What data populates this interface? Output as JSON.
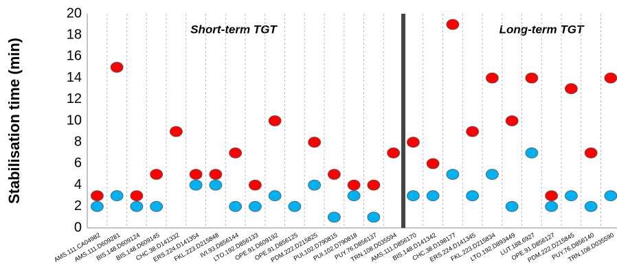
{
  "chart_data": {
    "type": "scatter",
    "y_label": "Stabilisation time (min)",
    "annotations": [
      "Short-term TGT",
      "Long-term TGT"
    ],
    "categories": [
      "AMS.111.CA04982",
      "AMS.111.D609281",
      "BIS.148.D609124",
      "BIS.148.D609145",
      "CHC.38.D141332",
      "ERS.224.D141354",
      "FKL.223.D215848",
      "IVI.93.D856144",
      "LTO.192.D856133",
      "OPE.91.D609192",
      "OPE.91.D856125",
      "PDM.222.D215825",
      "PUI.102.D790815",
      "PUI.102.D790818",
      "PUY.76.D856137",
      "TRN.108.D035594",
      "AMS.111.D856170",
      "BIS.148.D141342",
      "CHC.38.D198177",
      "ERS.224.D141345",
      "FKL.223.D215834",
      "LTO.192.D893449",
      "LUT.188.6927",
      "OPE.91.D856127",
      "PDM.222.D215845",
      "PUY.76.D856140",
      "TRN.108.D035590"
    ],
    "series": [
      {
        "color": "#ff0000",
        "values": [
          3,
          15,
          3,
          5,
          9,
          5,
          5,
          7,
          4,
          10,
          null,
          8,
          5,
          4,
          4,
          7,
          8,
          6,
          19,
          9,
          14,
          10,
          14,
          3,
          13,
          7,
          14
        ]
      },
      {
        "color": "#00b0f0",
        "values": [
          2,
          3,
          2,
          2,
          null,
          4,
          4,
          2,
          2,
          3,
          2,
          4,
          1,
          3,
          1,
          null,
          3,
          3,
          5,
          3,
          5,
          2,
          7,
          2,
          3,
          2,
          3
        ]
      }
    ],
    "ylim": [
      0,
      20
    ],
    "yticks": [
      0,
      2,
      4,
      6,
      8,
      10,
      12,
      14,
      16,
      18,
      20
    ],
    "grid": true
  }
}
